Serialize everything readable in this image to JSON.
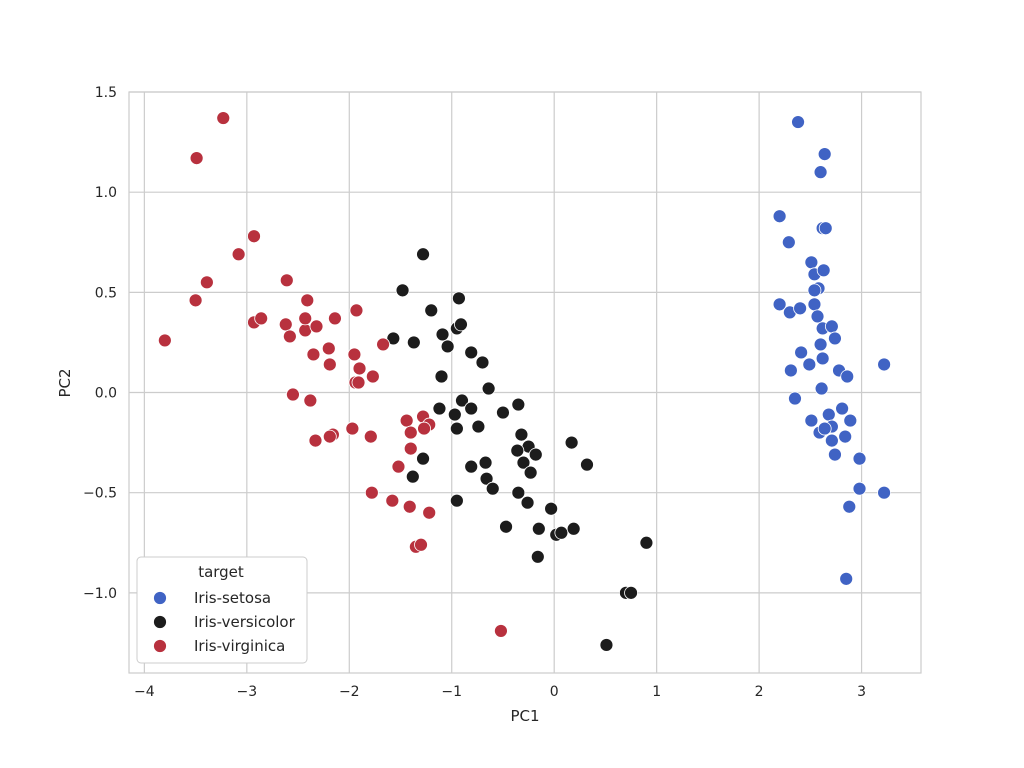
{
  "chart_data": {
    "type": "scatter",
    "title": "",
    "xlabel": "PC1",
    "ylabel": "PC2",
    "xlim": [
      -4.15,
      3.58
    ],
    "ylim": [
      -1.4,
      1.5
    ],
    "xticks": [
      -4,
      -3,
      -2,
      -1,
      0,
      1,
      2,
      3
    ],
    "xtick_labels": [
      "−4",
      "−3",
      "−2",
      "−1",
      "0",
      "1",
      "2",
      "3"
    ],
    "yticks": [
      -1.0,
      -0.5,
      0.0,
      0.5,
      1.0,
      1.5
    ],
    "ytick_labels": [
      "−1.0",
      "−0.5",
      "0.0",
      "0.5",
      "1.0",
      "1.5"
    ],
    "grid": true,
    "legend": {
      "title": "target",
      "position": "lower-left"
    },
    "series": [
      {
        "name": "Iris-setosa",
        "color": "#4063c4",
        "points": [
          [
            2.38,
            1.35
          ],
          [
            2.64,
            1.19
          ],
          [
            2.6,
            1.1
          ],
          [
            2.2,
            0.88
          ],
          [
            2.29,
            0.75
          ],
          [
            2.62,
            0.82
          ],
          [
            2.65,
            0.82
          ],
          [
            2.51,
            0.65
          ],
          [
            2.54,
            0.59
          ],
          [
            2.63,
            0.61
          ],
          [
            2.58,
            0.52
          ],
          [
            2.54,
            0.51
          ],
          [
            2.2,
            0.44
          ],
          [
            2.54,
            0.44
          ],
          [
            2.3,
            0.4
          ],
          [
            2.4,
            0.42
          ],
          [
            2.57,
            0.38
          ],
          [
            2.62,
            0.32
          ],
          [
            2.71,
            0.33
          ],
          [
            2.74,
            0.27
          ],
          [
            2.6,
            0.24
          ],
          [
            2.41,
            0.2
          ],
          [
            2.49,
            0.14
          ],
          [
            2.62,
            0.17
          ],
          [
            2.31,
            0.11
          ],
          [
            2.78,
            0.11
          ],
          [
            2.86,
            0.08
          ],
          [
            2.61,
            0.02
          ],
          [
            3.22,
            0.14
          ],
          [
            2.35,
            -0.03
          ],
          [
            2.81,
            -0.08
          ],
          [
            2.68,
            -0.11
          ],
          [
            2.89,
            -0.14
          ],
          [
            2.51,
            -0.14
          ],
          [
            2.71,
            -0.17
          ],
          [
            2.59,
            -0.2
          ],
          [
            2.64,
            -0.18
          ],
          [
            2.84,
            -0.22
          ],
          [
            2.71,
            -0.24
          ],
          [
            2.74,
            -0.31
          ],
          [
            2.98,
            -0.33
          ],
          [
            2.98,
            -0.48
          ],
          [
            3.22,
            -0.5
          ],
          [
            2.88,
            -0.57
          ],
          [
            2.85,
            -0.93
          ]
        ]
      },
      {
        "name": "Iris-versicolor",
        "color": "#1c1c1c",
        "points": [
          [
            -1.28,
            0.69
          ],
          [
            -1.48,
            0.51
          ],
          [
            -0.93,
            0.47
          ],
          [
            -1.57,
            0.27
          ],
          [
            -1.37,
            0.25
          ],
          [
            -1.2,
            0.41
          ],
          [
            -1.09,
            0.29
          ],
          [
            -1.04,
            0.23
          ],
          [
            -0.95,
            0.32
          ],
          [
            -0.91,
            0.34
          ],
          [
            -0.81,
            0.2
          ],
          [
            -0.7,
            0.15
          ],
          [
            -1.1,
            0.08
          ],
          [
            -0.64,
            0.02
          ],
          [
            -0.9,
            -0.04
          ],
          [
            -1.12,
            -0.08
          ],
          [
            -0.97,
            -0.11
          ],
          [
            -0.81,
            -0.08
          ],
          [
            -0.5,
            -0.1
          ],
          [
            -0.35,
            -0.06
          ],
          [
            -0.95,
            -0.18
          ],
          [
            -0.74,
            -0.17
          ],
          [
            -0.32,
            -0.21
          ],
          [
            -0.25,
            -0.27
          ],
          [
            -0.36,
            -0.29
          ],
          [
            -0.3,
            -0.35
          ],
          [
            -0.18,
            -0.31
          ],
          [
            -0.23,
            -0.4
          ],
          [
            0.17,
            -0.25
          ],
          [
            0.32,
            -0.36
          ],
          [
            -0.67,
            -0.35
          ],
          [
            -0.66,
            -0.43
          ],
          [
            -0.81,
            -0.37
          ],
          [
            -0.6,
            -0.48
          ],
          [
            -0.35,
            -0.5
          ],
          [
            -0.26,
            -0.55
          ],
          [
            -0.03,
            -0.58
          ],
          [
            -0.47,
            -0.67
          ],
          [
            0.02,
            -0.71
          ],
          [
            0.07,
            -0.7
          ],
          [
            0.19,
            -0.68
          ],
          [
            -0.15,
            -0.68
          ],
          [
            -0.16,
            -0.82
          ],
          [
            0.9,
            -0.75
          ],
          [
            0.7,
            -1.0
          ],
          [
            0.75,
            -1.0
          ],
          [
            0.51,
            -1.26
          ],
          [
            -0.95,
            -0.54
          ],
          [
            -1.28,
            -0.33
          ],
          [
            -1.38,
            -0.42
          ]
        ]
      },
      {
        "name": "Iris-virginica",
        "color": "#b8313e",
        "points": [
          [
            -3.23,
            1.37
          ],
          [
            -3.49,
            1.17
          ],
          [
            -2.93,
            0.78
          ],
          [
            -3.08,
            0.69
          ],
          [
            -3.39,
            0.55
          ],
          [
            -3.5,
            0.46
          ],
          [
            -3.8,
            0.26
          ],
          [
            -2.93,
            0.35
          ],
          [
            -2.86,
            0.37
          ],
          [
            -2.61,
            0.56
          ],
          [
            -2.41,
            0.46
          ],
          [
            -2.62,
            0.34
          ],
          [
            -2.58,
            0.28
          ],
          [
            -2.43,
            0.31
          ],
          [
            -2.43,
            0.37
          ],
          [
            -2.32,
            0.33
          ],
          [
            -2.14,
            0.37
          ],
          [
            -1.93,
            0.41
          ],
          [
            -1.67,
            0.24
          ],
          [
            -2.2,
            0.22
          ],
          [
            -2.19,
            0.14
          ],
          [
            -2.35,
            0.19
          ],
          [
            -1.95,
            0.19
          ],
          [
            -1.9,
            0.12
          ],
          [
            -1.94,
            0.05
          ],
          [
            -1.91,
            0.05
          ],
          [
            -1.77,
            0.08
          ],
          [
            -2.55,
            -0.01
          ],
          [
            -2.38,
            -0.04
          ],
          [
            -1.44,
            -0.14
          ],
          [
            -1.28,
            -0.12
          ],
          [
            -1.22,
            -0.16
          ],
          [
            -1.27,
            -0.18
          ],
          [
            -1.4,
            -0.2
          ],
          [
            -1.97,
            -0.18
          ],
          [
            -2.16,
            -0.21
          ],
          [
            -2.19,
            -0.22
          ],
          [
            -2.33,
            -0.24
          ],
          [
            -1.79,
            -0.22
          ],
          [
            -1.4,
            -0.28
          ],
          [
            -1.52,
            -0.37
          ],
          [
            -1.58,
            -0.54
          ],
          [
            -1.78,
            -0.5
          ],
          [
            -1.41,
            -0.57
          ],
          [
            -1.22,
            -0.6
          ],
          [
            -1.35,
            -0.77
          ],
          [
            -1.3,
            -0.76
          ],
          [
            -0.52,
            -1.19
          ]
        ]
      }
    ]
  }
}
